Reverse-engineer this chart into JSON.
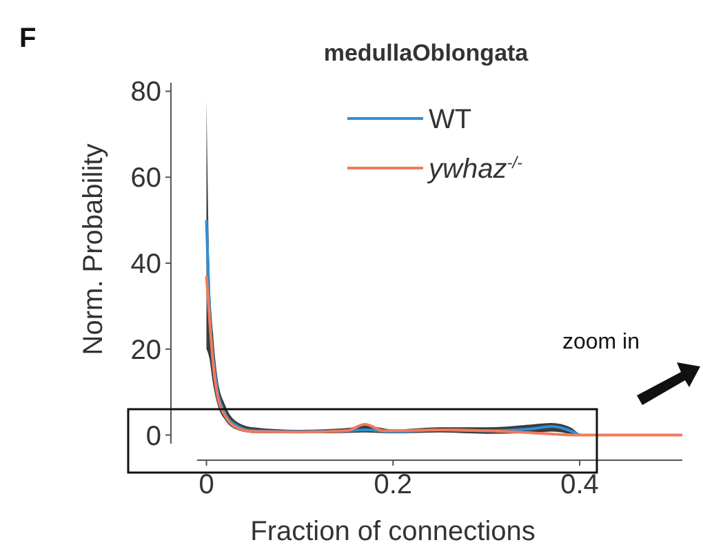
{
  "chart_data": {
    "type": "line",
    "title": "medullaOblongata",
    "xlabel": "Fraction of connections",
    "ylabel": "Norm. Probability",
    "annotations": [
      "F",
      "zoom in"
    ],
    "xlim": [
      -0.01,
      0.51
    ],
    "xticks": [
      0,
      0.2,
      0.4
    ],
    "ylim": [
      -2,
      82
    ],
    "yticks": [
      0,
      20,
      40,
      60,
      80
    ],
    "grid": false,
    "legend": "top",
    "series": [
      {
        "name": "WT",
        "color": "#2e8fd6",
        "x": [
          0,
          0.003,
          0.007,
          0.012,
          0.02,
          0.03,
          0.05,
          0.1,
          0.15,
          0.17,
          0.2,
          0.25,
          0.3,
          0.35,
          0.37,
          0.39,
          0.4
        ],
        "values": [
          50,
          30,
          18,
          10,
          5,
          2.5,
          1,
          0.8,
          1,
          1.2,
          0.8,
          1.2,
          1,
          1.5,
          2,
          1,
          0
        ],
        "lower": [
          20,
          18,
          12,
          7,
          3.5,
          1.5,
          0.5,
          0.4,
          0.5,
          0.6,
          0.4,
          0.6,
          0.3,
          0.5,
          0.8,
          0.3,
          0
        ],
        "upper": [
          78,
          40,
          24,
          13,
          7,
          3.5,
          1.8,
          1.2,
          1.6,
          2.2,
          1.3,
          1.8,
          1.8,
          2.5,
          2.8,
          1.8,
          0
        ]
      },
      {
        "name": "ywhaz$^{-/-}$",
        "color": "#f07b5a",
        "x": [
          0,
          0.003,
          0.007,
          0.012,
          0.02,
          0.03,
          0.05,
          0.1,
          0.15,
          0.17,
          0.19,
          0.25,
          0.3,
          0.35,
          0.4,
          0.51
        ],
        "values": [
          37,
          28,
          17,
          9,
          4.5,
          2,
          0.8,
          0.7,
          1,
          2.5,
          1,
          1.2,
          1,
          0.5,
          0,
          0
        ]
      }
    ]
  }
}
